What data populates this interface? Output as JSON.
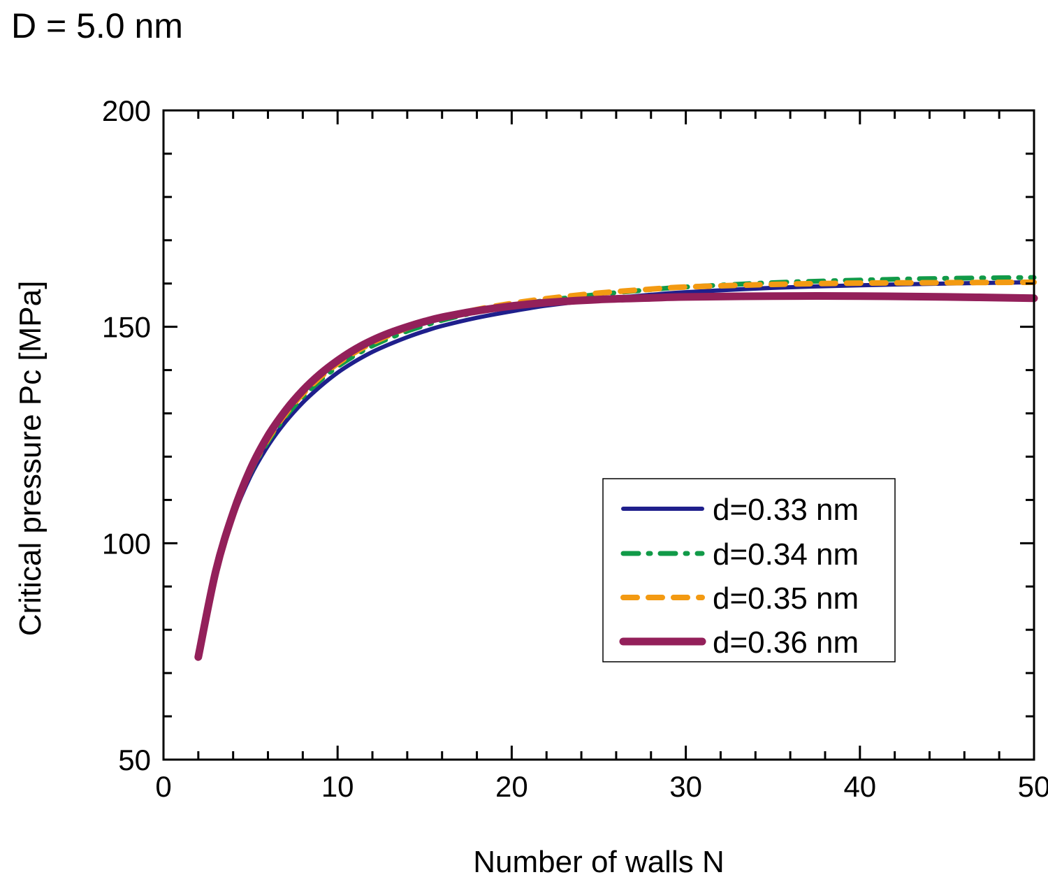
{
  "chart_data": {
    "type": "line",
    "title": "D = 5.0 nm",
    "xlabel": "Number of walls N",
    "ylabel": "Critical pressure Pc [MPa]",
    "xlim": [
      0,
      50
    ],
    "ylim": [
      50,
      200
    ],
    "x_ticks": [
      0,
      10,
      20,
      30,
      40,
      50
    ],
    "x_tick_labels": [
      "0",
      "10",
      "20",
      "30",
      "40",
      "50"
    ],
    "x_minor_step": 2,
    "y_ticks": [
      50,
      100,
      150,
      200
    ],
    "y_tick_labels": [
      "50",
      "100",
      "150",
      "200"
    ],
    "y_minor_step": 10,
    "grid": false,
    "legend_position": "center-right",
    "x": [
      2,
      3,
      4,
      5,
      6,
      7,
      8,
      9,
      10,
      11,
      12,
      13,
      14,
      15,
      16,
      18,
      20,
      22,
      25,
      28,
      30,
      35,
      40,
      45,
      50
    ],
    "series": [
      {
        "name": "d=0.33 nm",
        "color": "#1f1f8c",
        "style": "solid",
        "values": [
          73.7,
          93.0,
          106.0,
          115.5,
          122.5,
          128.0,
          132.5,
          136.2,
          139.4,
          142.0,
          144.2,
          146.0,
          147.6,
          149.0,
          150.2,
          152.1,
          153.6,
          154.9,
          156.3,
          157.4,
          158.0,
          159.0,
          159.6,
          160.0,
          160.3
        ]
      },
      {
        "name": "d=0.34 nm",
        "color": "#119a48",
        "style": "dashdot",
        "values": [
          73.7,
          93.2,
          106.5,
          116.3,
          123.5,
          129.2,
          133.8,
          137.6,
          140.8,
          143.4,
          145.6,
          147.4,
          149.0,
          150.3,
          151.5,
          153.4,
          154.9,
          156.1,
          157.5,
          158.6,
          159.2,
          160.2,
          160.8,
          161.2,
          161.4
        ]
      },
      {
        "name": "d=0.35 nm",
        "color": "#f39a12",
        "style": "dashed",
        "values": [
          73.7,
          93.3,
          106.8,
          116.7,
          124.0,
          129.8,
          134.5,
          138.3,
          141.5,
          144.1,
          146.3,
          148.1,
          149.7,
          151.0,
          152.1,
          154.0,
          155.4,
          156.5,
          157.8,
          158.7,
          159.2,
          159.8,
          160.1,
          160.2,
          160.3
        ]
      },
      {
        "name": "d=0.36 nm",
        "color": "#93205a",
        "style": "solid-thick",
        "values": [
          73.7,
          93.5,
          107.0,
          117.2,
          124.8,
          130.6,
          135.3,
          139.1,
          142.2,
          144.8,
          146.9,
          148.6,
          150.0,
          151.2,
          152.2,
          153.7,
          154.8,
          155.6,
          156.3,
          156.7,
          156.9,
          157.1,
          157.1,
          156.9,
          156.6
        ]
      }
    ]
  }
}
